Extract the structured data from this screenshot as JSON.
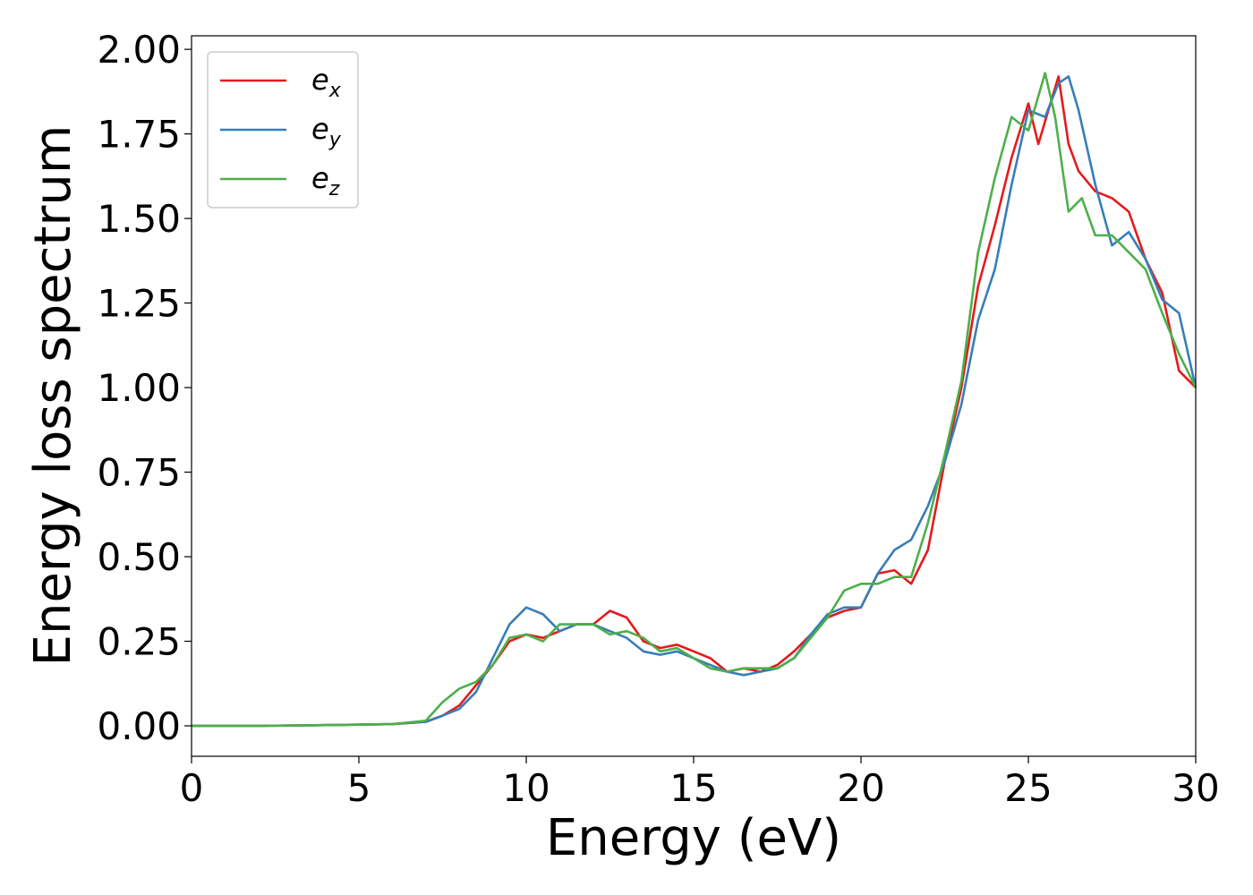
{
  "chart_data": {
    "type": "line",
    "xlabel": "Energy (eV)",
    "ylabel": "Energy loss spectrum",
    "xlim": [
      0,
      30
    ],
    "ylim": [
      -0.09,
      2.04
    ],
    "xticks": [
      "0",
      "5",
      "10",
      "15",
      "20",
      "25",
      "30"
    ],
    "yticks": [
      "0.00",
      "0.25",
      "0.50",
      "0.75",
      "1.00",
      "1.25",
      "1.50",
      "1.75",
      "2.00"
    ],
    "grid": false,
    "legend_position": "top-left",
    "series": [
      {
        "name": "e",
        "subscript": "x",
        "color": "#e41a1c",
        "points": [
          [
            0,
            0.0
          ],
          [
            2,
            0.0
          ],
          [
            4,
            0.002
          ],
          [
            6,
            0.005
          ],
          [
            7,
            0.012
          ],
          [
            7.5,
            0.03
          ],
          [
            8,
            0.06
          ],
          [
            8.5,
            0.12
          ],
          [
            9,
            0.18
          ],
          [
            9.5,
            0.25
          ],
          [
            10,
            0.27
          ],
          [
            10.5,
            0.26
          ],
          [
            11,
            0.28
          ],
          [
            11.5,
            0.3
          ],
          [
            12,
            0.3
          ],
          [
            12.5,
            0.34
          ],
          [
            13,
            0.32
          ],
          [
            13.5,
            0.25
          ],
          [
            14,
            0.23
          ],
          [
            14.5,
            0.24
          ],
          [
            15,
            0.22
          ],
          [
            15.5,
            0.2
          ],
          [
            16,
            0.16
          ],
          [
            16.5,
            0.17
          ],
          [
            17,
            0.16
          ],
          [
            17.5,
            0.18
          ],
          [
            18,
            0.22
          ],
          [
            18.5,
            0.27
          ],
          [
            19,
            0.32
          ],
          [
            19.5,
            0.34
          ],
          [
            20,
            0.35
          ],
          [
            20.5,
            0.45
          ],
          [
            21,
            0.46
          ],
          [
            21.5,
            0.42
          ],
          [
            22,
            0.52
          ],
          [
            22.5,
            0.78
          ],
          [
            23,
            1.0
          ],
          [
            23.5,
            1.3
          ],
          [
            24,
            1.48
          ],
          [
            24.5,
            1.68
          ],
          [
            25,
            1.84
          ],
          [
            25.3,
            1.72
          ],
          [
            25.6,
            1.82
          ],
          [
            25.9,
            1.92
          ],
          [
            26.2,
            1.72
          ],
          [
            26.5,
            1.64
          ],
          [
            27,
            1.58
          ],
          [
            27.5,
            1.56
          ],
          [
            28,
            1.52
          ],
          [
            28.5,
            1.38
          ],
          [
            29,
            1.28
          ],
          [
            29.5,
            1.05
          ],
          [
            30,
            1.0
          ]
        ]
      },
      {
        "name": "e",
        "subscript": "y",
        "color": "#377eb8",
        "points": [
          [
            0,
            0.0
          ],
          [
            2,
            0.0
          ],
          [
            4,
            0.002
          ],
          [
            6,
            0.005
          ],
          [
            7,
            0.012
          ],
          [
            7.5,
            0.03
          ],
          [
            8,
            0.05
          ],
          [
            8.5,
            0.1
          ],
          [
            9,
            0.2
          ],
          [
            9.5,
            0.3
          ],
          [
            10,
            0.35
          ],
          [
            10.5,
            0.33
          ],
          [
            11,
            0.28
          ],
          [
            11.5,
            0.3
          ],
          [
            12,
            0.3
          ],
          [
            12.5,
            0.28
          ],
          [
            13,
            0.26
          ],
          [
            13.5,
            0.22
          ],
          [
            14,
            0.21
          ],
          [
            14.5,
            0.22
          ],
          [
            15,
            0.2
          ],
          [
            15.5,
            0.18
          ],
          [
            16,
            0.16
          ],
          [
            16.5,
            0.15
          ],
          [
            17,
            0.16
          ],
          [
            17.5,
            0.17
          ],
          [
            18,
            0.2
          ],
          [
            18.5,
            0.27
          ],
          [
            19,
            0.33
          ],
          [
            19.5,
            0.35
          ],
          [
            20,
            0.35
          ],
          [
            20.5,
            0.45
          ],
          [
            21,
            0.52
          ],
          [
            21.5,
            0.55
          ],
          [
            22,
            0.65
          ],
          [
            22.5,
            0.78
          ],
          [
            23,
            0.95
          ],
          [
            23.5,
            1.2
          ],
          [
            24,
            1.35
          ],
          [
            24.5,
            1.6
          ],
          [
            25,
            1.82
          ],
          [
            25.5,
            1.8
          ],
          [
            25.9,
            1.9
          ],
          [
            26.2,
            1.92
          ],
          [
            26.5,
            1.82
          ],
          [
            27,
            1.6
          ],
          [
            27.5,
            1.42
          ],
          [
            28,
            1.46
          ],
          [
            28.5,
            1.38
          ],
          [
            29,
            1.26
          ],
          [
            29.5,
            1.22
          ],
          [
            30,
            1.0
          ]
        ]
      },
      {
        "name": "e",
        "subscript": "z",
        "color": "#4daf4a",
        "points": [
          [
            0,
            0.0
          ],
          [
            2,
            0.0
          ],
          [
            4,
            0.002
          ],
          [
            6,
            0.005
          ],
          [
            7,
            0.015
          ],
          [
            7.5,
            0.07
          ],
          [
            8,
            0.11
          ],
          [
            8.5,
            0.13
          ],
          [
            9,
            0.18
          ],
          [
            9.5,
            0.26
          ],
          [
            10,
            0.27
          ],
          [
            10.5,
            0.25
          ],
          [
            11,
            0.3
          ],
          [
            11.5,
            0.3
          ],
          [
            12,
            0.3
          ],
          [
            12.5,
            0.27
          ],
          [
            13,
            0.28
          ],
          [
            13.5,
            0.26
          ],
          [
            14,
            0.22
          ],
          [
            14.5,
            0.23
          ],
          [
            15,
            0.2
          ],
          [
            15.5,
            0.17
          ],
          [
            16,
            0.16
          ],
          [
            16.5,
            0.17
          ],
          [
            17,
            0.17
          ],
          [
            17.5,
            0.17
          ],
          [
            18,
            0.2
          ],
          [
            18.5,
            0.26
          ],
          [
            19,
            0.32
          ],
          [
            19.5,
            0.4
          ],
          [
            20,
            0.42
          ],
          [
            20.5,
            0.42
          ],
          [
            21,
            0.44
          ],
          [
            21.5,
            0.44
          ],
          [
            22,
            0.6
          ],
          [
            22.5,
            0.8
          ],
          [
            23,
            1.02
          ],
          [
            23.5,
            1.4
          ],
          [
            24,
            1.62
          ],
          [
            24.5,
            1.8
          ],
          [
            25,
            1.76
          ],
          [
            25.5,
            1.93
          ],
          [
            25.8,
            1.8
          ],
          [
            26.2,
            1.52
          ],
          [
            26.6,
            1.56
          ],
          [
            27,
            1.45
          ],
          [
            27.5,
            1.45
          ],
          [
            28,
            1.4
          ],
          [
            28.5,
            1.35
          ],
          [
            29,
            1.22
          ],
          [
            29.5,
            1.1
          ],
          [
            30,
            1.0
          ]
        ]
      }
    ]
  }
}
